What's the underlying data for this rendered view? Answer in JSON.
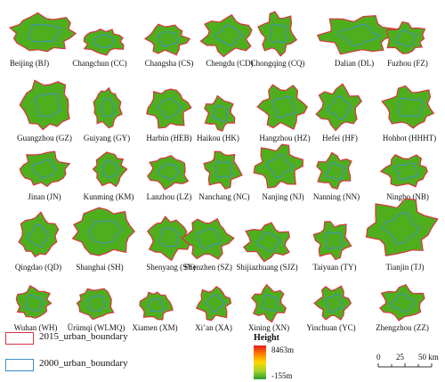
{
  "cities": [
    {
      "label": "Beijing (BJ)"
    },
    {
      "label": "Changchun (CC)"
    },
    {
      "label": "Changsha (CS)"
    },
    {
      "label": "Chengdu (CD)"
    },
    {
      "label": "Chongqing (CQ)"
    },
    {
      "label": "Dalian (DL)"
    },
    {
      "label": "Fuzhou (FZ)"
    },
    {
      "label": "Guangzhou (GZ)"
    },
    {
      "label": "Guiyang (GY)"
    },
    {
      "label": "Harbin (HEB)"
    },
    {
      "label": "Haikou (HK)"
    },
    {
      "label": "Hangzhou (HZ)"
    },
    {
      "label": "Hefei (HF)"
    },
    {
      "label": "Hohhot (HHHT)"
    },
    {
      "label": "Jinan (JN)"
    },
    {
      "label": "Kunming (KM)"
    },
    {
      "label": "Lanzhou (LZ)"
    },
    {
      "label": "Nanchang (NC)"
    },
    {
      "label": "Nanjing (NJ)"
    },
    {
      "label": "Nanning (NN)"
    },
    {
      "label": "Ningbo (NB)"
    },
    {
      "label": "Qingdao (QD)"
    },
    {
      "label": "Shanghai (SH)"
    },
    {
      "label": "Shenyang (SY)"
    },
    {
      "label": "Shenzhen (SZ)"
    },
    {
      "label": "Shijiazhuang (SJZ)"
    },
    {
      "label": "Taiyuan (TY)"
    },
    {
      "label": "Tianjin (TJ)"
    },
    {
      "label": "Wuhan (WH)"
    },
    {
      "label": "Ürümqi (WLMQ)"
    },
    {
      "label": "Xiamen (XM)"
    },
    {
      "label": "Xi’an (XA)"
    },
    {
      "label": "Xining (XN)"
    },
    {
      "label": "Yinchuan (YC)"
    },
    {
      "label": "Zhengzhou (ZZ)"
    }
  ],
  "legend": {
    "boundary_2015": {
      "label": "2015_urban_boundary",
      "color": "#d9333f"
    },
    "boundary_2000": {
      "label": "2000_urban_boundary",
      "color": "#3d8fc8"
    },
    "height": {
      "title": "Height",
      "max": "8463m",
      "min": "-155m",
      "colors": [
        "#e31a1c",
        "#ff7f00",
        "#ffd700",
        "#a6d42c",
        "#2ca02c"
      ]
    }
  },
  "scale_bar": {
    "ticks": [
      "0",
      "25",
      "50 km"
    ],
    "values_km": [
      0,
      25,
      50
    ]
  },
  "colors": {
    "fill": "#4fae1e",
    "boundary_2015": "#d9333f",
    "boundary_2000": "#3d8fc8"
  }
}
